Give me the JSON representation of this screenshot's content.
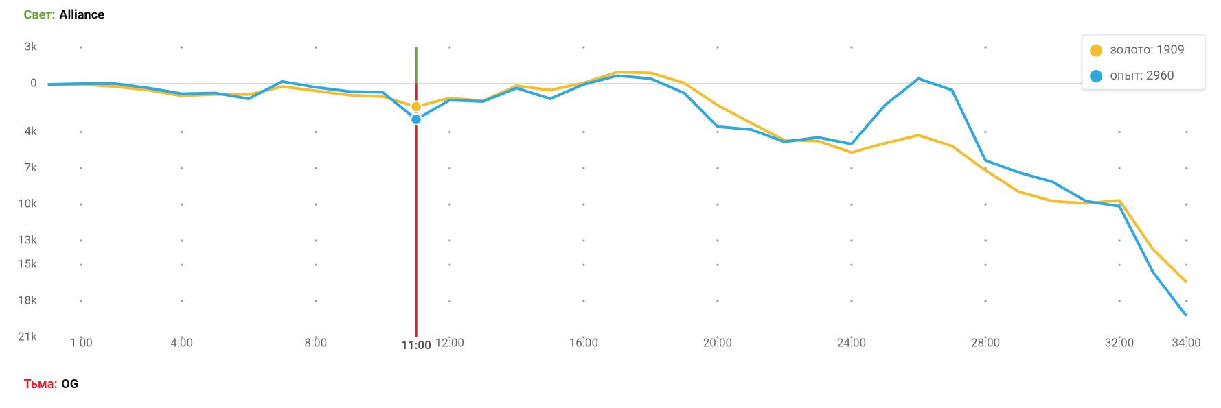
{
  "chart_data": {
    "type": "line",
    "top_label": {
      "side": "Свет:",
      "team": "Alliance"
    },
    "bottom_label": {
      "side": "Тьма:",
      "team": "OG"
    },
    "x": [
      0,
      1,
      2,
      3,
      4,
      5,
      6,
      7,
      8,
      9,
      10,
      11,
      12,
      13,
      14,
      15,
      16,
      17,
      18,
      19,
      20,
      21,
      22,
      23,
      24,
      25,
      26,
      27,
      28,
      29,
      30,
      31,
      32,
      33,
      34
    ],
    "xlim": [
      0,
      34
    ],
    "xticks": [
      {
        "value": 1,
        "label": "1:00"
      },
      {
        "value": 4,
        "label": "4:00"
      },
      {
        "value": 8,
        "label": "8:00"
      },
      {
        "value": 12,
        "label": "12:00"
      },
      {
        "value": 16,
        "label": "16:00"
      },
      {
        "value": 20,
        "label": "20:00"
      },
      {
        "value": 24,
        "label": "24:00"
      },
      {
        "value": 28,
        "label": "28:00"
      },
      {
        "value": 32,
        "label": "32:00"
      },
      {
        "value": 34,
        "label": "34:00"
      }
    ],
    "highlight": {
      "value": 11,
      "label": "11:00"
    },
    "ylim": [
      -21000,
      3000
    ],
    "yticks": [
      {
        "value": 3000,
        "label": "3k"
      },
      0,
      {
        "value": -4000,
        "label": "4k"
      },
      {
        "value": -7000,
        "label": "7k"
      },
      {
        "value": -10000,
        "label": "10k"
      },
      {
        "value": -13000,
        "label": "13k"
      },
      {
        "value": -15000,
        "label": "15k"
      },
      {
        "value": -18000,
        "label": "18k"
      },
      {
        "value": -21000,
        "label": "21k"
      }
    ],
    "grid": true,
    "legend": "top-right",
    "legend_separator": ": ",
    "series": [
      {
        "name": "золото",
        "color": "#f5bd2c",
        "hover_label": "1909",
        "values": [
          -60,
          -60,
          -240,
          -530,
          -1010,
          -890,
          -890,
          -240,
          -590,
          -950,
          -1070,
          -1909,
          -1190,
          -1420,
          -180,
          -530,
          60,
          950,
          890,
          60,
          -1780,
          -3260,
          -4690,
          -4750,
          -5700,
          -4930,
          -4270,
          -5160,
          -7180,
          -8960,
          -9730,
          -9910,
          -9670,
          -13710,
          -16440
        ]
      },
      {
        "name": "опыт",
        "color": "#2ea8df",
        "hover_label": "2960",
        "values": [
          -60,
          0,
          0,
          -360,
          -830,
          -770,
          -1250,
          180,
          -300,
          -650,
          -710,
          -2960,
          -1360,
          -1480,
          -360,
          -1250,
          -60,
          650,
          420,
          -770,
          -3560,
          -3800,
          -4810,
          -4450,
          -4990,
          -1780,
          420,
          -530,
          -6350,
          -7360,
          -8130,
          -9730,
          -10150,
          -15610,
          -19230
        ]
      }
    ]
  }
}
